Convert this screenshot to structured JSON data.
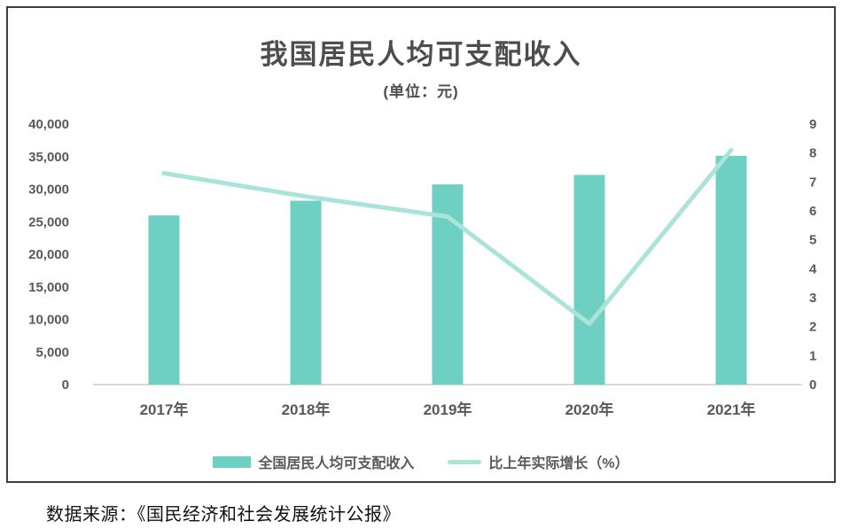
{
  "title": "我国居民人均可支配收入",
  "subtitle": "(单位：元)",
  "source": "数据来源：《国民经济和社会发展统计公报》",
  "colors": {
    "bar": "#6dd0c3",
    "line": "#abe3d9",
    "axis_text": "#595959",
    "baseline": "#d8d8d8",
    "card_border": "#3e3e3e"
  },
  "chart_data": {
    "type": "bar",
    "subtype": "bar-line-combo",
    "title": "我国居民人均可支配收入",
    "subtitle": "(单位：元)",
    "categories": [
      "2017年",
      "2018年",
      "2019年",
      "2020年",
      "2021年"
    ],
    "series": [
      {
        "name": "全国居民人均可支配收入",
        "type": "bar",
        "axis": "left",
        "values": [
          25974,
          28228,
          30733,
          32189,
          35128
        ],
        "color": "#6dd0c3"
      },
      {
        "name": "比上年实际增长（%）",
        "type": "line",
        "axis": "right",
        "values": [
          7.3,
          6.5,
          5.8,
          2.1,
          8.1
        ],
        "color": "#abe3d9"
      }
    ],
    "left_axis": {
      "min": 0,
      "max": 40000,
      "step": 5000
    },
    "right_axis": {
      "min": 0,
      "max": 9,
      "step": 1
    },
    "grid": false,
    "legend_position": "bottom"
  }
}
